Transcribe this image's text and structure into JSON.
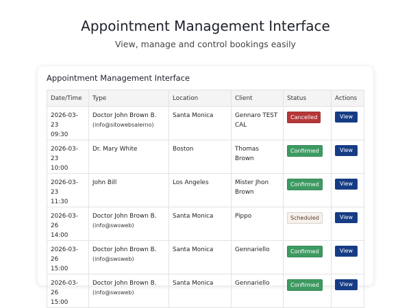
{
  "header": {
    "title": "Appointment Management Interface",
    "subtitle": "View, manage and control bookings easily"
  },
  "card": {
    "title": "Appointment Management Interface"
  },
  "table": {
    "columns": [
      "Date/Time",
      "Type",
      "Location",
      "Client",
      "Status",
      "Actions"
    ],
    "rows": [
      {
        "date": "2026-03-23",
        "time": "09:30",
        "type": "Doctor John Brown B.",
        "type_note": "(info@sitowebsalerno)",
        "location": "Santa Monica",
        "client": "Gennaro TEST CAL",
        "status": "Cancelled",
        "status_color": "#b5373a",
        "status_text_color": "#ffffff",
        "action": "View"
      },
      {
        "date": "2026-03-23",
        "time": "10:00",
        "type": "Dr. Mary White",
        "location": "Boston",
        "client": "Thomas Brown",
        "status": "Confirmed",
        "status_color": "#3d9a62",
        "status_text_color": "#ffffff",
        "action": "View"
      },
      {
        "date": "2026-03-23",
        "time": "11:30",
        "type": "John Bill",
        "location": "Los Angeles",
        "client": "Mister Jhon Brown",
        "status": "Confirmed",
        "status_color": "#3d9a62",
        "status_text_color": "#ffffff",
        "action": "View"
      },
      {
        "date": "2026-03-26",
        "time": "14:00",
        "type": "Doctor John Brown B.",
        "type_note": "(info@swsweb)",
        "location": "Santa Monica",
        "client": "Pippo",
        "status": "Scheduled",
        "status_color": "#f7f1ec",
        "status_text_color": "#5a3a2a",
        "action": "View"
      },
      {
        "date": "2026-03-26",
        "time": "15:00",
        "type": "Doctor John Brown B.",
        "type_note": "(info@swsweb)",
        "location": "Santa Monica",
        "client": "Gennariello",
        "status": "Confirmed",
        "status_color": "#3d9a62",
        "status_text_color": "#ffffff",
        "action": "View"
      },
      {
        "date": "2026-03-26",
        "time": "15:00",
        "type": "Doctor John Brown B.",
        "type_note": "(info@swsweb)",
        "location": "Santa Monica",
        "client": "Gennariello",
        "status": "Confirmed",
        "status_color": "#3d9a62",
        "status_text_color": "#ffffff",
        "action": "View"
      }
    ]
  }
}
